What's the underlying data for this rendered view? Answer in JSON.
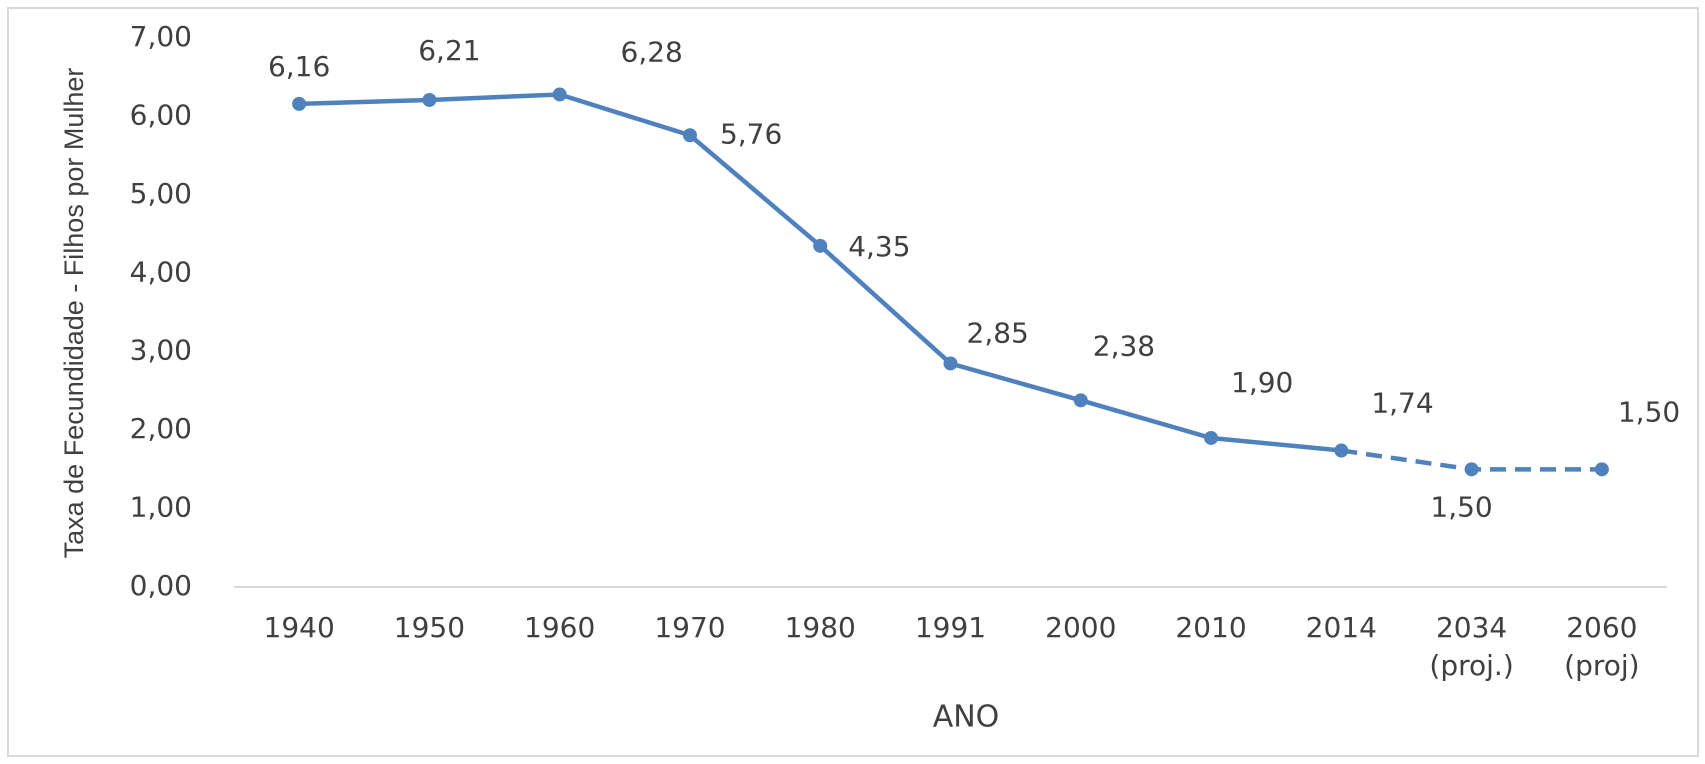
{
  "chart_data": {
    "type": "line",
    "y_axis_label": "Taxa de Fecundidade - Filhos por Mulher",
    "x_axis_label": "ANO",
    "categories": [
      "1940",
      "1950",
      "1960",
      "1970",
      "1980",
      "1991",
      "2000",
      "2010",
      "2014",
      "2034 (proj.)",
      "2060 (proj)"
    ],
    "series": [
      {
        "color": "#4f81bd",
        "values": [
          6.16,
          6.21,
          6.28,
          5.76,
          4.35,
          2.85,
          2.38,
          1.9,
          1.74,
          1.5,
          1.5
        ],
        "value_labels": [
          "6,16",
          "6,21",
          "6,28",
          "5,76",
          "4,35",
          "2,85",
          "2,38",
          "1,90",
          "1,74",
          "1,50",
          "1,50"
        ],
        "dashed_from": 8
      }
    ],
    "ylim": [
      0,
      7
    ],
    "yticks": [
      {
        "value": 0,
        "label": "0,00"
      },
      {
        "value": 1,
        "label": "1,00"
      },
      {
        "value": 2,
        "label": "2,00"
      },
      {
        "value": 3,
        "label": "3,00"
      },
      {
        "value": 4,
        "label": "4,00"
      },
      {
        "value": 5,
        "label": "5,00"
      },
      {
        "value": 6,
        "label": "6,00"
      },
      {
        "value": 7,
        "label": "7,00"
      }
    ],
    "grid": false
  }
}
